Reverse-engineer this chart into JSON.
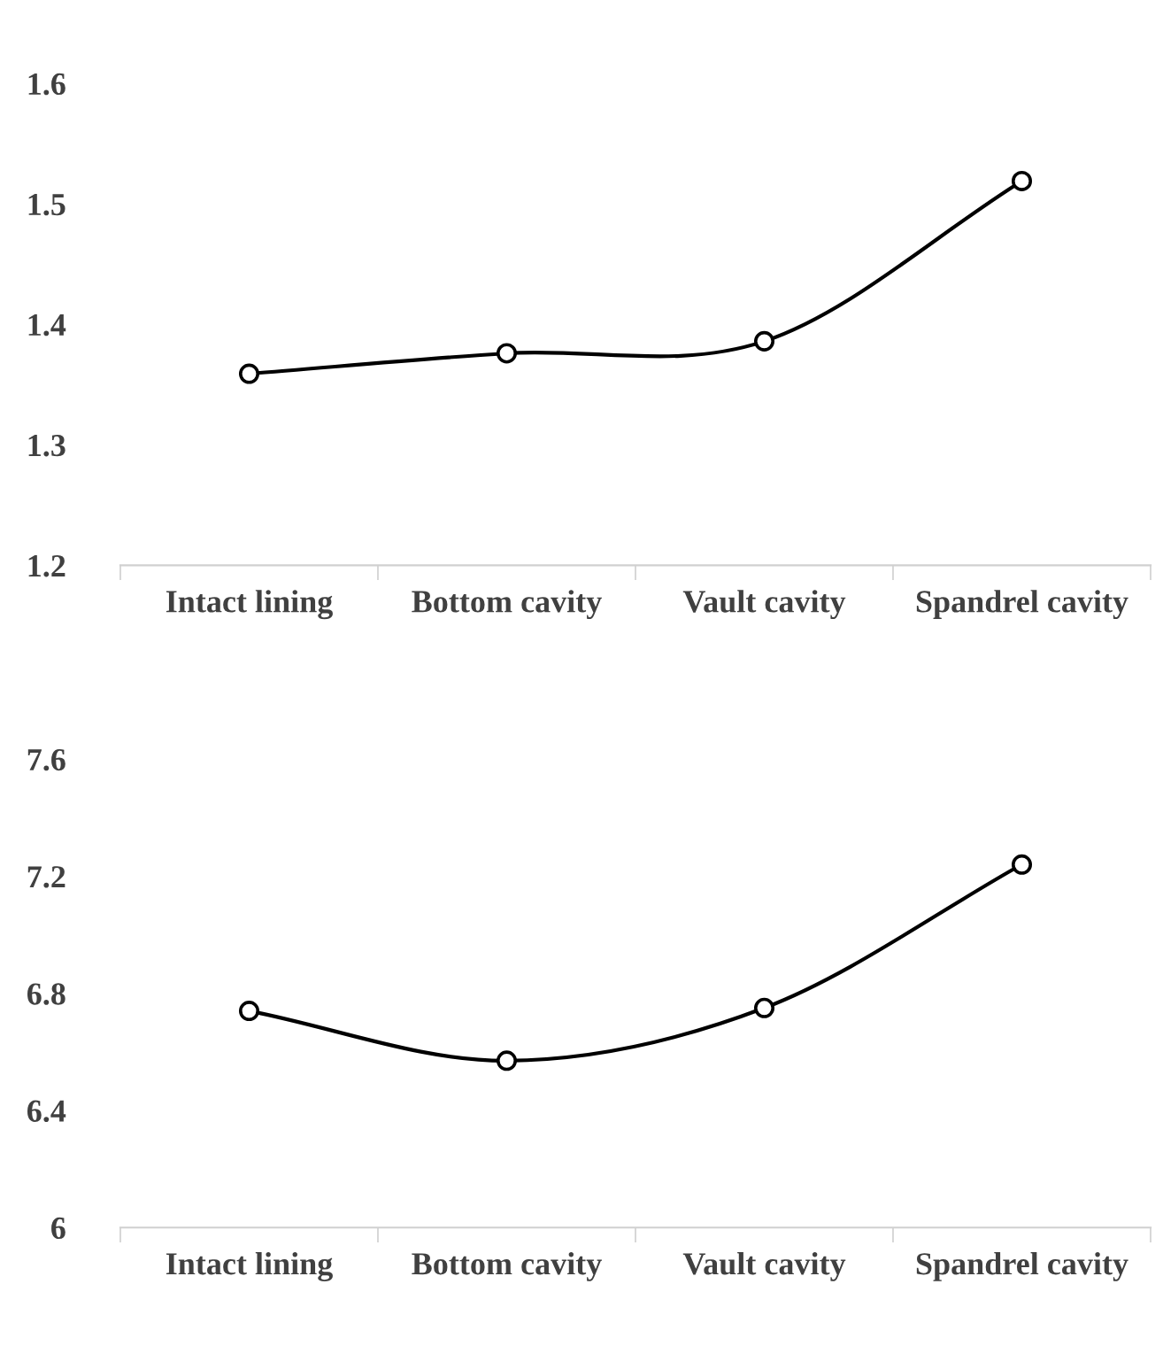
{
  "chart_data": [
    {
      "type": "line",
      "categories": [
        "Intact lining",
        "Bottom cavity",
        "Vault cavity",
        "Spandrel cavity"
      ],
      "series": [
        {
          "color": "#000000",
          "values": [
            1.359,
            1.376,
            1.386,
            1.519
          ]
        }
      ],
      "ylim": [
        1.2,
        1.6
      ],
      "yticks": [
        1.2,
        1.3,
        1.4,
        1.5,
        1.6
      ],
      "marker": "circle",
      "line_style": "solid"
    },
    {
      "type": "line",
      "categories": [
        "Intact lining",
        "Bottom cavity",
        "Vault cavity",
        "Spandrel cavity"
      ],
      "series": [
        {
          "color": "#000000",
          "values": [
            6.74,
            6.57,
            6.75,
            7.24
          ]
        }
      ],
      "ylim": [
        6,
        7.6
      ],
      "yticks": [
        6,
        6.4,
        6.8,
        7.2,
        7.6
      ],
      "marker": "circle",
      "line_style": "solid"
    }
  ]
}
